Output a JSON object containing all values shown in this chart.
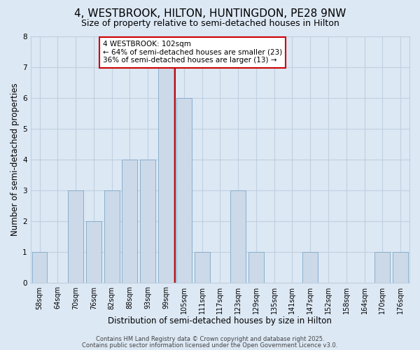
{
  "title": "4, WESTBROOK, HILTON, HUNTINGDON, PE28 9NW",
  "subtitle": "Size of property relative to semi-detached houses in Hilton",
  "xlabel": "Distribution of semi-detached houses by size in Hilton",
  "ylabel": "Number of semi-detached properties",
  "bins": [
    "58sqm",
    "64sqm",
    "70sqm",
    "76sqm",
    "82sqm",
    "88sqm",
    "93sqm",
    "99sqm",
    "105sqm",
    "111sqm",
    "117sqm",
    "123sqm",
    "129sqm",
    "135sqm",
    "141sqm",
    "147sqm",
    "152sqm",
    "158sqm",
    "164sqm",
    "170sqm",
    "176sqm"
  ],
  "counts": [
    1,
    0,
    3,
    2,
    3,
    4,
    4,
    7,
    6,
    1,
    0,
    3,
    1,
    0,
    0,
    1,
    0,
    0,
    0,
    1,
    1
  ],
  "bar_color": "#ccd9e8",
  "bar_edge_color": "#7fa8c8",
  "grid_color": "#c0d0e0",
  "background_color": "#dce8f4",
  "annotation_text": "4 WESTBROOK: 102sqm\n← 64% of semi-detached houses are smaller (23)\n36% of semi-detached houses are larger (13) →",
  "vline_x_index": 7.5,
  "vline_color": "#cc0000",
  "ylim": [
    0,
    8
  ],
  "footer1": "Contains HM Land Registry data © Crown copyright and database right 2025.",
  "footer2": "Contains public sector information licensed under the Open Government Licence v3.0.",
  "title_fontsize": 11,
  "subtitle_fontsize": 9,
  "axis_label_fontsize": 8.5,
  "tick_fontsize": 7,
  "annotation_fontsize": 7.5,
  "footer_fontsize": 6
}
